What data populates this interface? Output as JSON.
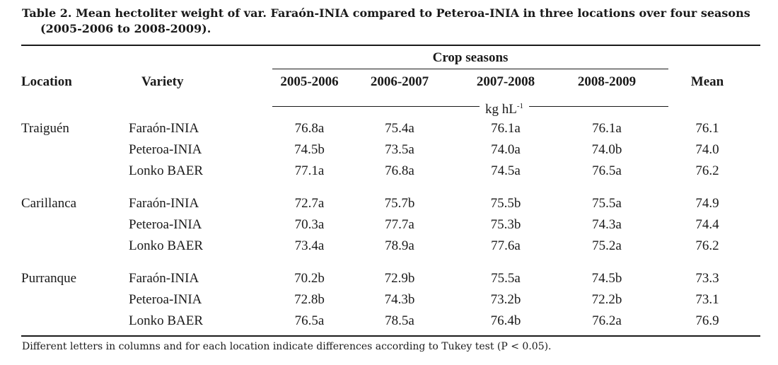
{
  "caption": {
    "line1": "Table 2. Mean hectoliter weight of var. Faraón-INIA compared to Peteroa-INIA in three locations over four seasons",
    "line2": "(2005-2006 to 2008-2009)."
  },
  "header": {
    "group_label": "Crop seasons",
    "location": "Location",
    "variety": "Variety",
    "seasons": [
      "2005-2006",
      "2006-2007",
      "2007-2008",
      "2008-2009"
    ],
    "mean": "Mean",
    "units": "kg hL",
    "units_exp": "-1"
  },
  "groups": [
    {
      "location": "Traiguén",
      "rows": [
        {
          "variety": "Faraón-INIA",
          "values": [
            "76.8a",
            "75.4a",
            "76.1a",
            "76.1a"
          ],
          "mean": "76.1"
        },
        {
          "variety": "Peteroa-INIA",
          "values": [
            "74.5b",
            "73.5a",
            "74.0a",
            "74.0b"
          ],
          "mean": "74.0"
        },
        {
          "variety": "Lonko BAER",
          "values": [
            "77.1a",
            "76.8a",
            "74.5a",
            "76.5a"
          ],
          "mean": "76.2"
        }
      ]
    },
    {
      "location": "Carillanca",
      "rows": [
        {
          "variety": "Faraón-INIA",
          "values": [
            "72.7a",
            "75.7b",
            "75.5b",
            "75.5a"
          ],
          "mean": "74.9"
        },
        {
          "variety": "Peteroa-INIA",
          "values": [
            "70.3a",
            "77.7a",
            "75.3b",
            "74.3a"
          ],
          "mean": "74.4"
        },
        {
          "variety": "Lonko BAER",
          "values": [
            "73.4a",
            "78.9a",
            "77.6a",
            "75.2a"
          ],
          "mean": "76.2"
        }
      ]
    },
    {
      "location": "Purranque",
      "rows": [
        {
          "variety": "Faraón-INIA",
          "values": [
            "70.2b",
            "72.9b",
            "75.5a",
            "74.5b"
          ],
          "mean": "73.3"
        },
        {
          "variety": "Peteroa-INIA",
          "values": [
            "72.8b",
            "74.3b",
            "73.2b",
            "72.2b"
          ],
          "mean": "73.1"
        },
        {
          "variety": "Lonko BAER",
          "values": [
            "76.5a",
            "78.5a",
            "76.4b",
            "76.2a"
          ],
          "mean": "76.9"
        }
      ]
    }
  ],
  "footnote": "Different letters in columns and for each location indicate differences according to Tukey test (P < 0.05)."
}
